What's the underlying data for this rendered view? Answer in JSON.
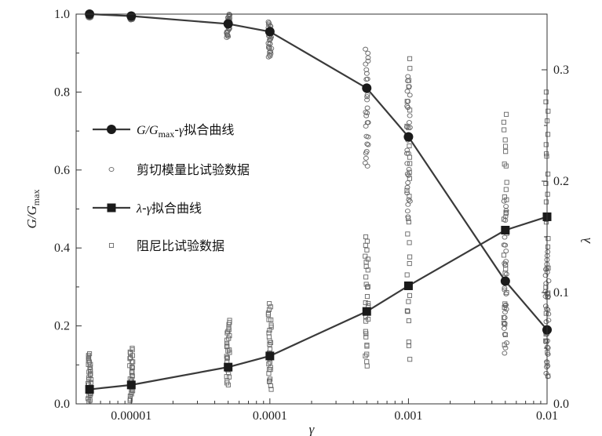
{
  "chart_data": {
    "type": "scatter",
    "x_scale": "log",
    "xlabel": "γ",
    "ylabel_left": "G/Gmax",
    "ylabel_right": "λ",
    "xlim": [
      4e-06,
      0.01
    ],
    "ylim_left": [
      0,
      1.0
    ],
    "ylim_right": [
      0,
      0.35
    ],
    "x_ticks": [
      {
        "value": 1e-05,
        "label": "0.00001"
      },
      {
        "value": 0.0001,
        "label": "0.0001"
      },
      {
        "value": 0.001,
        "label": "0.001"
      },
      {
        "value": 0.01,
        "label": "0.01"
      }
    ],
    "y_ticks_left": [
      {
        "value": 0,
        "label": "0.0"
      },
      {
        "value": 0.2,
        "label": "0.2"
      },
      {
        "value": 0.4,
        "label": "0.4"
      },
      {
        "value": 0.6,
        "label": "0.6"
      },
      {
        "value": 0.8,
        "label": "0.8"
      },
      {
        "value": 1.0,
        "label": "1.0"
      }
    ],
    "y_ticks_right": [
      {
        "value": 0,
        "label": "0.0"
      },
      {
        "value": 0.1,
        "label": "0.1"
      },
      {
        "value": 0.2,
        "label": "0.2"
      },
      {
        "value": 0.3,
        "label": "0.3"
      }
    ],
    "grid": false,
    "legend_position": "left-center",
    "series": [
      {
        "name": "G/Gmax-γ拟合曲线",
        "kind": "fit-line",
        "axis": "left",
        "marker": "circle-filled",
        "x": [
          5e-06,
          1e-05,
          5e-05,
          0.0001,
          0.0005,
          0.001,
          0.005,
          0.01
        ],
        "y": [
          1.0,
          0.995,
          0.975,
          0.955,
          0.81,
          0.685,
          0.315,
          0.19
        ]
      },
      {
        "name": "剪切模量比试验数据",
        "kind": "test-data",
        "axis": "left",
        "marker": "circle-open",
        "x": [
          5e-06,
          1e-05,
          5e-05,
          0.0001,
          0.0005,
          0.001,
          0.005,
          0.01
        ],
        "y_range": [
          [
            0.99,
            1.0
          ],
          [
            0.985,
            1.0
          ],
          [
            0.94,
            1.0
          ],
          [
            0.89,
            0.98
          ],
          [
            0.61,
            0.91
          ],
          [
            0.48,
            0.84
          ],
          [
            0.13,
            0.52
          ],
          [
            0.07,
            0.39
          ]
        ]
      },
      {
        "name": "λ-γ拟合曲线",
        "kind": "fit-line",
        "axis": "right",
        "marker": "square-filled",
        "x": [
          5e-06,
          1e-05,
          5e-05,
          0.0001,
          0.0005,
          0.001,
          0.005,
          0.01
        ],
        "y": [
          0.013,
          0.017,
          0.033,
          0.043,
          0.083,
          0.106,
          0.156,
          0.168
        ]
      },
      {
        "name": "阻尼比试验数据",
        "kind": "test-data",
        "axis": "right",
        "marker": "square-open",
        "x": [
          5e-06,
          1e-05,
          5e-05,
          0.0001,
          0.0005,
          0.001,
          0.005,
          0.01
        ],
        "y_range": [
          [
            0.002,
            0.045
          ],
          [
            0.003,
            0.05
          ],
          [
            0.017,
            0.075
          ],
          [
            0.013,
            0.09
          ],
          [
            0.034,
            0.15
          ],
          [
            0.04,
            0.31
          ],
          [
            0.053,
            0.26
          ],
          [
            0.025,
            0.28
          ]
        ]
      }
    ]
  }
}
